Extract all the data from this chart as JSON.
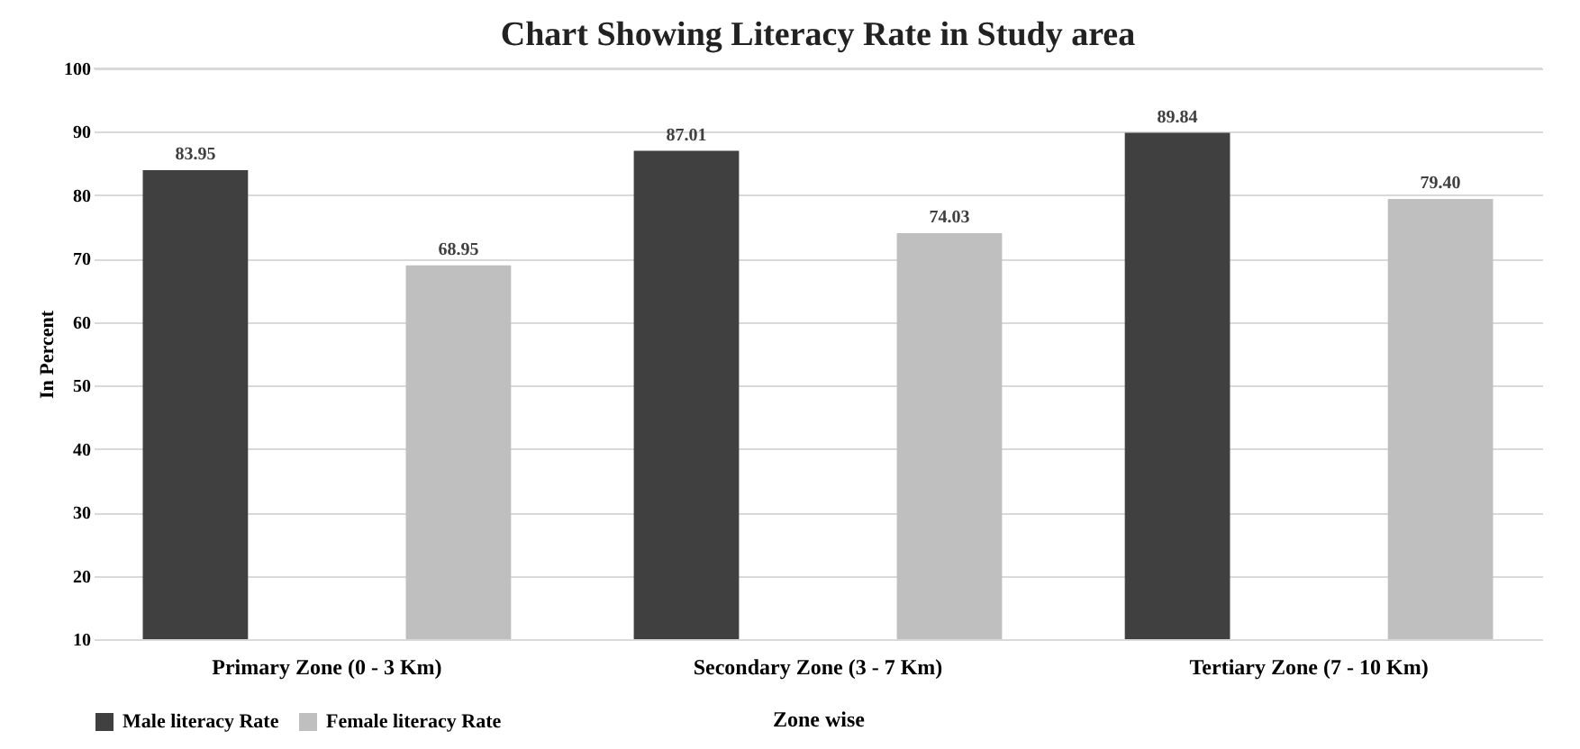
{
  "chart_data": {
    "type": "bar",
    "title": "Chart Showing Literacy Rate in Study area",
    "xlabel": "Zone wise",
    "ylabel": "In Percent",
    "categories": [
      "Primary Zone (0 - 3 Km)",
      "Secondary Zone (3 - 7 Km)",
      "Tertiary Zone (7 - 10 Km)"
    ],
    "series": [
      {
        "name": "Male literacy Rate",
        "color": "#404040",
        "values": [
          83.95,
          87.01,
          89.84
        ],
        "value_labels": [
          "83.95",
          "87.01",
          "89.84"
        ]
      },
      {
        "name": "Female literacy Rate",
        "color": "#bfbfbf",
        "values": [
          68.95,
          74.03,
          79.4
        ],
        "value_labels": [
          "68.95",
          "74.03",
          "79.40"
        ]
      }
    ],
    "ylim": [
      10,
      100
    ],
    "yticks": [
      10,
      20,
      30,
      40,
      50,
      60,
      70,
      80,
      90,
      100
    ],
    "grid": "y",
    "legend": "bottom",
    "data_labels": true
  }
}
